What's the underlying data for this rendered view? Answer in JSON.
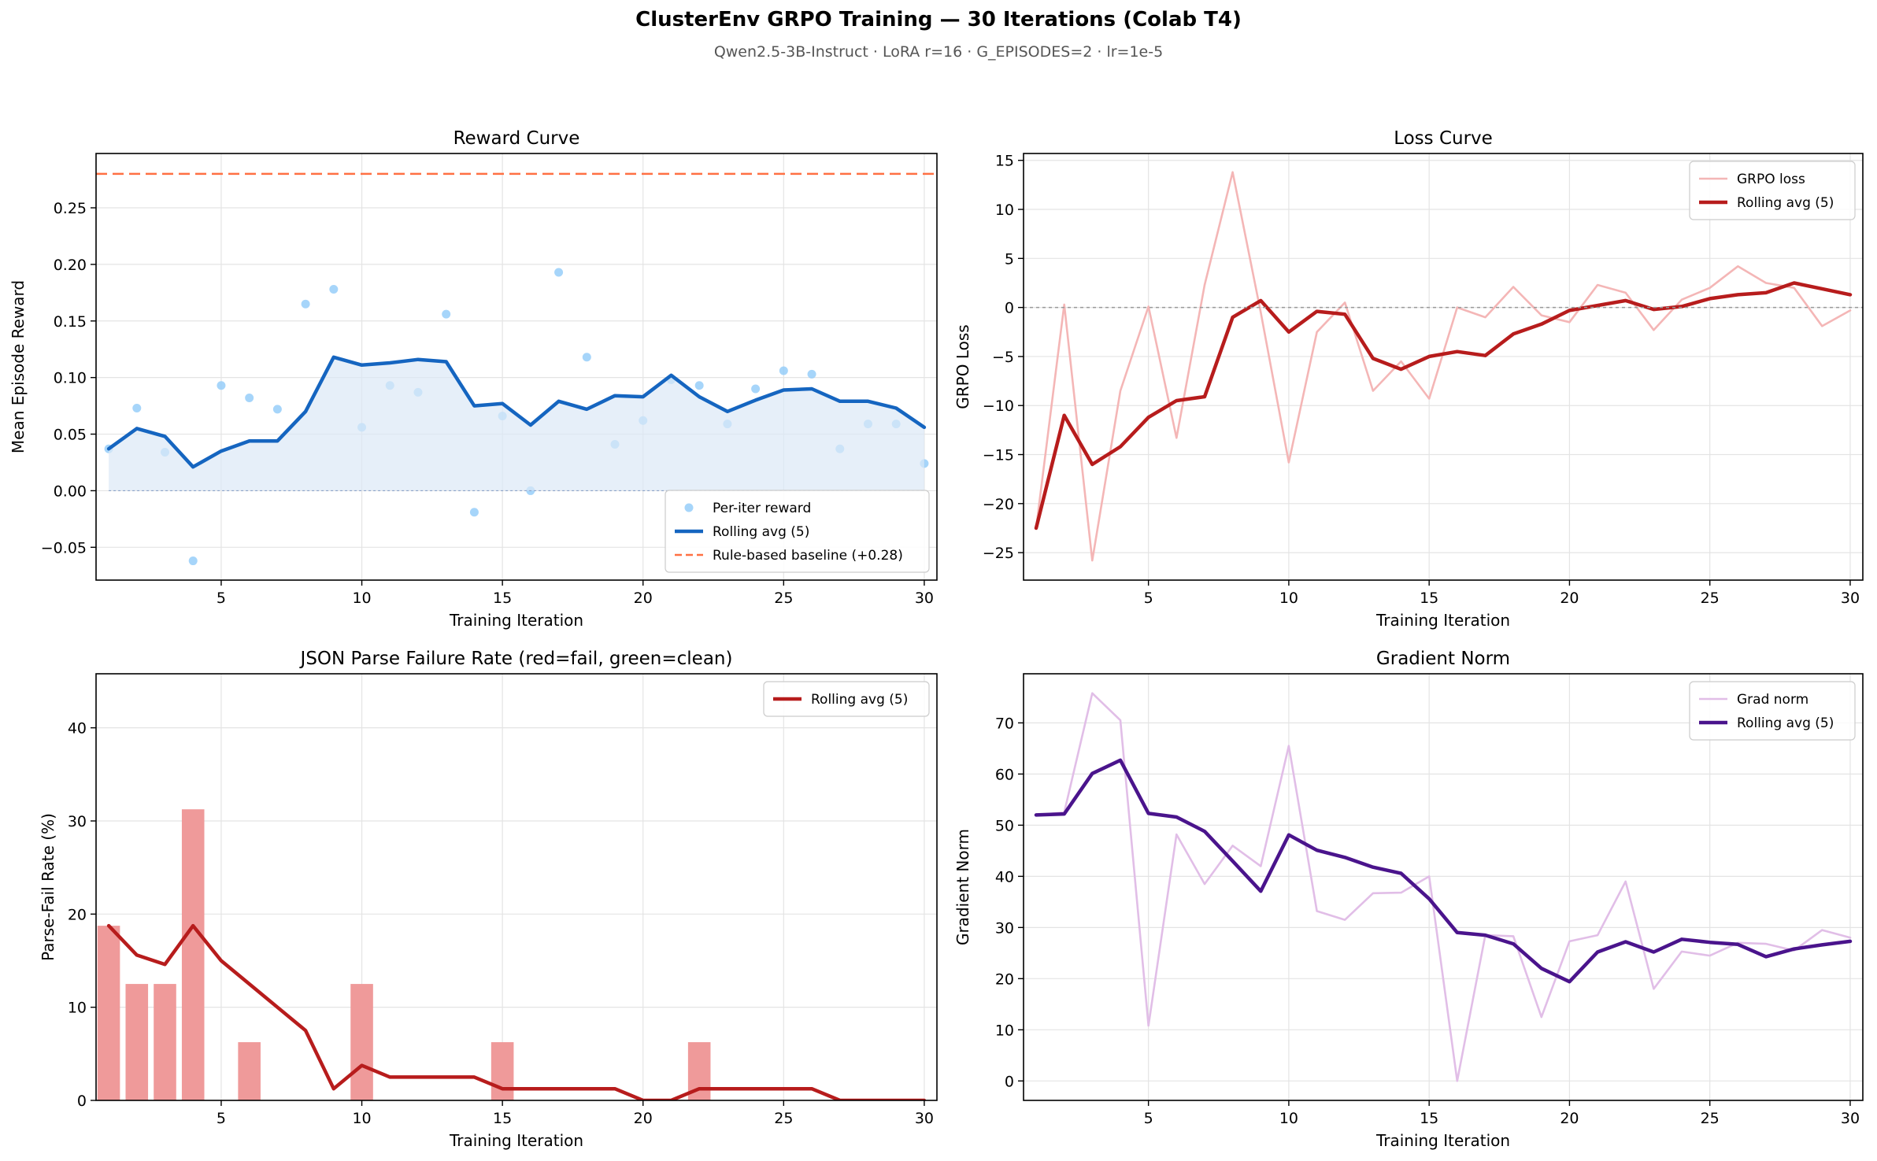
{
  "figure": {
    "title": "ClusterEnv GRPO Training — 30 Iterations (Colab T4)",
    "subtitle": "Qwen2.5-3B-Instruct · LoRA r=16 · G_EPISODES=2 · lr=1e-5"
  },
  "chart_data": [
    {
      "id": "reward",
      "type": "scatter",
      "title": "Reward Curve",
      "xlabel": "Training Iteration",
      "ylabel": "Mean Episode Reward",
      "xlim": [
        0.55,
        30.45
      ],
      "ylim": [
        -0.079,
        0.298
      ],
      "xticks": [
        5,
        10,
        15,
        20,
        25,
        30
      ],
      "yticks": [
        -0.05,
        0.0,
        0.05,
        0.1,
        0.15,
        0.2,
        0.25
      ],
      "ytick_labels": [
        "−0.05",
        "0.00",
        "0.05",
        "0.10",
        "0.15",
        "0.20",
        "0.25"
      ],
      "grid": true,
      "legend_position": "lower-right",
      "x": [
        1,
        2,
        3,
        4,
        5,
        6,
        7,
        8,
        9,
        10,
        11,
        12,
        13,
        14,
        15,
        16,
        17,
        18,
        19,
        20,
        21,
        22,
        23,
        24,
        25,
        26,
        27,
        28,
        29,
        30
      ],
      "series": [
        {
          "name": "Per-iter reward",
          "kind": "scatter",
          "color": "#90caf9",
          "values": [
            0.037,
            0.073,
            0.034,
            -0.062,
            0.093,
            0.082,
            0.072,
            0.165,
            0.178,
            0.056,
            0.093,
            0.087,
            0.156,
            -0.019,
            0.066,
            0.0,
            0.193,
            0.118,
            0.041,
            0.062,
            0.098,
            0.093,
            0.059,
            0.09,
            0.106,
            0.103,
            0.037,
            0.059,
            0.059,
            0.024
          ]
        },
        {
          "name": "Rolling avg (5)",
          "kind": "line",
          "color": "#1565c0",
          "fill": "#dbe8f7",
          "values": [
            0.037,
            0.055,
            0.048,
            0.021,
            0.035,
            0.044,
            0.044,
            0.07,
            0.118,
            0.111,
            0.113,
            0.116,
            0.114,
            0.075,
            0.077,
            0.058,
            0.079,
            0.072,
            0.084,
            0.083,
            0.102,
            0.083,
            0.07,
            0.08,
            0.089,
            0.09,
            0.079,
            0.079,
            0.073,
            0.056
          ]
        },
        {
          "name": "Rule-based baseline (+0.28)",
          "kind": "hline",
          "color": "#ff7043",
          "value": 0.28
        }
      ]
    },
    {
      "id": "loss",
      "type": "line",
      "title": "Loss Curve",
      "xlabel": "Training Iteration",
      "ylabel": "GRPO Loss",
      "xlim": [
        0.55,
        30.45
      ],
      "ylim": [
        -27.8,
        15.7
      ],
      "xticks": [
        5,
        10,
        15,
        20,
        25,
        30
      ],
      "yticks": [
        -25,
        -20,
        -15,
        -10,
        -5,
        0,
        5,
        10,
        15
      ],
      "ytick_labels": [
        "−25",
        "−20",
        "−15",
        "−10",
        "−5",
        "0",
        "5",
        "10",
        "15"
      ],
      "grid": true,
      "legend_position": "top-right",
      "x": [
        1,
        2,
        3,
        4,
        5,
        6,
        7,
        8,
        9,
        10,
        11,
        12,
        13,
        14,
        15,
        16,
        17,
        18,
        19,
        20,
        21,
        22,
        23,
        24,
        25,
        26,
        27,
        28,
        29,
        30
      ],
      "series": [
        {
          "name": "GRPO loss",
          "kind": "line",
          "color": "#f4b6b6",
          "values": [
            -22.5,
            0.3,
            -25.8,
            -8.5,
            0.1,
            -13.3,
            2.3,
            13.8,
            -0.5,
            -15.8,
            -2.5,
            0.5,
            -8.5,
            -5.5,
            -9.3,
            0.0,
            -1.0,
            2.1,
            -0.8,
            -1.5,
            2.3,
            1.5,
            -2.3,
            0.8,
            2.0,
            4.2,
            2.5,
            2.0,
            -1.9,
            -0.3
          ]
        },
        {
          "name": "Rolling avg (5)",
          "kind": "line",
          "color": "#b71c1c",
          "values": [
            -22.5,
            -11.0,
            -16.0,
            -14.2,
            -11.2,
            -9.5,
            -9.1,
            -1.0,
            0.7,
            -2.5,
            -0.4,
            -0.7,
            -5.2,
            -6.3,
            -5.0,
            -4.5,
            -4.9,
            -2.7,
            -1.7,
            -0.3,
            0.2,
            0.7,
            -0.2,
            0.1,
            0.9,
            1.3,
            1.5,
            2.5,
            1.9,
            1.3
          ]
        },
        {
          "name": "",
          "kind": "hline",
          "color": "#999999",
          "value": 0
        }
      ]
    },
    {
      "id": "parse",
      "type": "bar",
      "title": "JSON Parse Failure Rate (red=fail, green=clean)",
      "xlabel": "Training Iteration",
      "ylabel": "Parse-Fail Rate (%)",
      "xlim": [
        0.55,
        30.45
      ],
      "ylim": [
        0,
        45.8
      ],
      "xticks": [
        5,
        10,
        15,
        20,
        25,
        30
      ],
      "yticks": [
        0,
        10,
        20,
        30,
        40
      ],
      "ytick_labels": [
        "0",
        "10",
        "20",
        "30",
        "40"
      ],
      "grid": true,
      "legend_position": "top-right",
      "x": [
        1,
        2,
        3,
        4,
        5,
        6,
        7,
        8,
        9,
        10,
        11,
        12,
        13,
        14,
        15,
        16,
        17,
        18,
        19,
        20,
        21,
        22,
        23,
        24,
        25,
        26,
        27,
        28,
        29,
        30
      ],
      "series": [
        {
          "name": "Parse-fail rate",
          "kind": "bar",
          "color": "#ef9a9a",
          "values": [
            18.75,
            12.5,
            12.5,
            31.25,
            0,
            6.25,
            0,
            0,
            0,
            12.5,
            0,
            0,
            0,
            0,
            6.25,
            0,
            0,
            0,
            0,
            0,
            0,
            6.25,
            0,
            0,
            0,
            0,
            0,
            0,
            0,
            0
          ]
        },
        {
          "name": "Rolling avg (5)",
          "kind": "line",
          "color": "#b71c1c",
          "values": [
            18.75,
            15.6,
            14.6,
            18.75,
            15.0,
            12.5,
            10.0,
            7.5,
            1.25,
            3.75,
            2.5,
            2.5,
            2.5,
            2.5,
            1.25,
            1.25,
            1.25,
            1.25,
            1.25,
            0,
            0,
            1.25,
            1.25,
            1.25,
            1.25,
            1.25,
            0,
            0,
            0,
            0
          ]
        }
      ]
    },
    {
      "id": "grad",
      "type": "line",
      "title": "Gradient Norm",
      "xlabel": "Training Iteration",
      "ylabel": "Gradient Norm",
      "xlim": [
        0.55,
        30.45
      ],
      "ylim": [
        -3.8,
        79.6
      ],
      "xticks": [
        5,
        10,
        15,
        20,
        25,
        30
      ],
      "yticks": [
        0,
        10,
        20,
        30,
        40,
        50,
        60,
        70
      ],
      "ytick_labels": [
        "0",
        "10",
        "20",
        "30",
        "40",
        "50",
        "60",
        "70"
      ],
      "grid": true,
      "legend_position": "top-right",
      "x": [
        1,
        2,
        3,
        4,
        5,
        6,
        7,
        8,
        9,
        10,
        11,
        12,
        13,
        14,
        15,
        16,
        17,
        18,
        19,
        20,
        21,
        22,
        23,
        24,
        25,
        26,
        27,
        28,
        29,
        30
      ],
      "series": [
        {
          "name": "Grad norm",
          "kind": "line",
          "color": "#e1bee7",
          "values": [
            52,
            52.5,
            75.8,
            70.5,
            10.8,
            48.2,
            38.5,
            46.0,
            42.0,
            65.5,
            33.2,
            31.5,
            36.7,
            36.8,
            40.0,
            0.0,
            28.5,
            28.3,
            12.5,
            27.3,
            28.5,
            39.0,
            18.0,
            25.3,
            24.5,
            27.0,
            26.8,
            25.5,
            29.5,
            28.0
          ]
        },
        {
          "name": "Rolling avg (5)",
          "kind": "line",
          "color": "#4a148c",
          "values": [
            52.0,
            52.2,
            60.1,
            62.7,
            52.3,
            51.6,
            48.8,
            43.0,
            37.1,
            48.1,
            45.1,
            43.7,
            41.8,
            40.6,
            35.6,
            29.0,
            28.5,
            26.8,
            22.0,
            19.4,
            25.2,
            27.2,
            25.2,
            27.7,
            27.1,
            26.7,
            24.3,
            25.8,
            26.6,
            27.3
          ]
        }
      ]
    }
  ]
}
